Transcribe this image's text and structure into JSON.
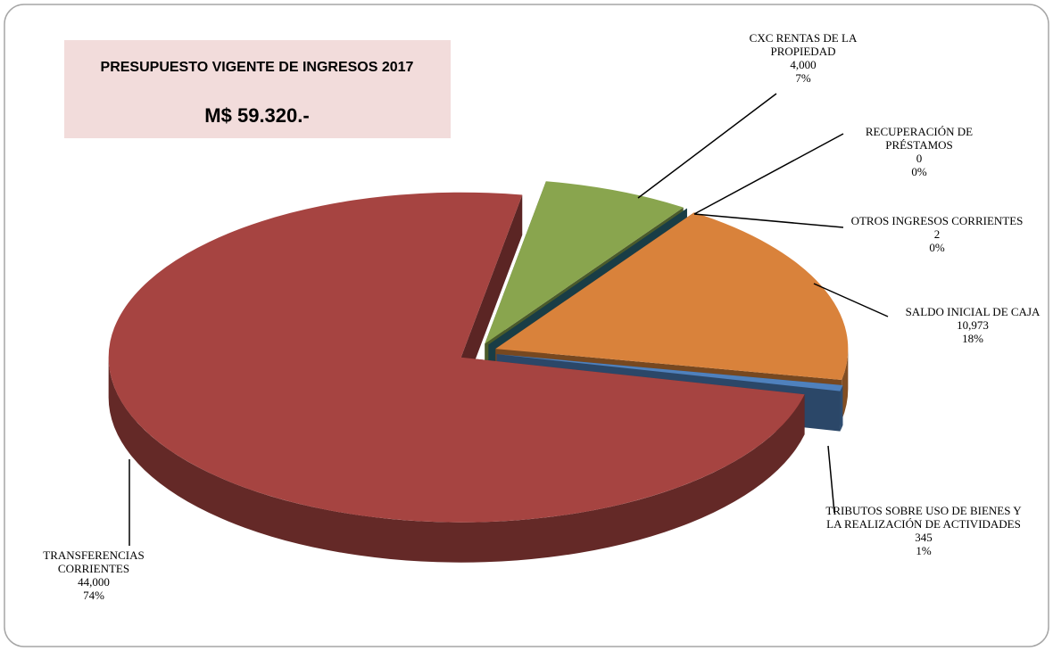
{
  "chart_data": {
    "type": "pie3d",
    "title": "PRESUPUESTO VIGENTE DE INGRESOS 2017",
    "subtitle": "M$ 59.320.-",
    "categories": [
      "TRANSFERENCIAS CORRIENTES",
      "CXC RENTAS DE LA PROPIEDAD",
      "RECUPERACIÓN DE PRÉSTAMOS",
      "OTROS INGRESOS CORRIENTES",
      "SALDO INICIAL DE CAJA",
      "TRIBUTOS SOBRE USO DE BIENES Y LA REALIZACIÓN DE ACTIVIDADES"
    ],
    "values": [
      44000,
      4000,
      0,
      2,
      10973,
      345
    ],
    "value_labels": [
      "44,000",
      "4,000",
      "0",
      "2",
      "10,973",
      "345"
    ],
    "percents": [
      74,
      7,
      0,
      0,
      18,
      1
    ],
    "percent_labels": [
      "74%",
      "7%",
      "0%",
      "0%",
      "18%",
      "1%"
    ],
    "colors": [
      "#a64441",
      "#89a54e",
      "#4071a8",
      "#2e6f80",
      "#d9823b",
      "#4f81bd"
    ]
  }
}
